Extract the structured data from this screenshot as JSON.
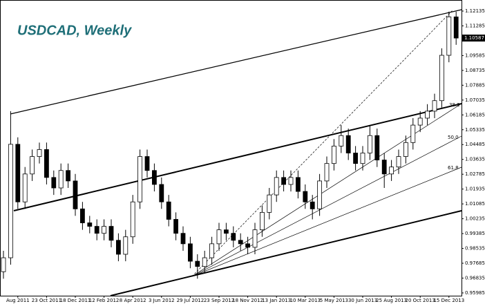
{
  "chart_data": {
    "type": "candlestick",
    "title": "USDCAD, Weekly",
    "categories": [
      null,
      null,
      "Aug 2011",
      null,
      null,
      null,
      "23 Oct 2011",
      null,
      null,
      null,
      "18 Dec 2011",
      null,
      null,
      null,
      "12 Feb 2012",
      null,
      null,
      null,
      "8 Apr 2012",
      null,
      null,
      null,
      "3 Jun 2012",
      null,
      null,
      null,
      "29 Jul 2012",
      null,
      null,
      null,
      "23 Sep 2012",
      null,
      null,
      null,
      "18 Nov 2012",
      null,
      null,
      null,
      "13 Jan 2013",
      null,
      null,
      null,
      "10 Mar 2013",
      null,
      null,
      null,
      "5 May 2013",
      null,
      null,
      null,
      "30 Jun 2013",
      null,
      null,
      null,
      "25 Aug 2013",
      null,
      null,
      null,
      "20 Oct 2013",
      null,
      null,
      null,
      "15 Dec 2013",
      null
    ],
    "open": [
      0.972,
      0.98,
      1.045,
      1.012,
      1.028,
      1.038,
      1.042,
      1.026,
      1.02,
      1.03,
      1.024,
      1.008,
      1.0,
      0.998,
      0.994,
      0.998,
      0.99,
      0.982,
      0.992,
      1.012,
      1.038,
      1.03,
      1.022,
      1.012,
      1.002,
      0.994,
      0.988,
      0.978,
      0.975,
      0.98,
      0.988,
      0.996,
      0.994,
      0.99,
      0.988,
      0.986,
      0.996,
      1.006,
      1.016,
      1.026,
      1.022,
      1.026,
      1.018,
      1.012,
      1.008,
      1.024,
      1.034,
      1.044,
      1.05,
      1.04,
      1.034,
      1.04,
      1.05,
      1.036,
      1.028,
      1.032,
      1.038,
      1.046,
      1.056,
      1.06,
      1.064,
      1.07,
      1.096,
      1.118
    ],
    "high": [
      0.984,
      1.064,
      1.049,
      1.032,
      1.042,
      1.046,
      1.046,
      1.03,
      1.034,
      1.034,
      1.028,
      1.012,
      1.004,
      1.002,
      1.002,
      1.002,
      0.994,
      0.996,
      1.016,
      1.042,
      1.042,
      1.034,
      1.026,
      1.016,
      1.006,
      0.998,
      0.992,
      0.982,
      0.984,
      0.992,
      1.0,
      1.0,
      0.998,
      0.994,
      0.992,
      1.0,
      1.01,
      1.02,
      1.03,
      1.03,
      1.03,
      1.03,
      1.022,
      1.016,
      1.028,
      1.038,
      1.048,
      1.056,
      1.054,
      1.044,
      1.044,
      1.056,
      1.054,
      1.04,
      1.036,
      1.042,
      1.05,
      1.06,
      1.064,
      1.068,
      1.074,
      1.1,
      1.121,
      1.121
    ],
    "low": [
      0.968,
      0.976,
      1.008,
      1.008,
      1.024,
      1.034,
      1.022,
      1.016,
      1.016,
      1.02,
      1.004,
      0.996,
      0.994,
      0.99,
      0.99,
      0.986,
      0.978,
      0.978,
      0.988,
      1.008,
      1.026,
      1.018,
      1.008,
      0.998,
      0.99,
      0.984,
      0.974,
      0.968,
      0.971,
      0.976,
      0.984,
      0.99,
      0.986,
      0.984,
      0.982,
      0.982,
      0.992,
      1.002,
      1.012,
      1.018,
      1.018,
      1.014,
      1.008,
      1.002,
      1.004,
      1.02,
      1.03,
      1.04,
      1.036,
      1.03,
      1.03,
      1.036,
      1.032,
      1.02,
      1.024,
      1.028,
      1.034,
      1.042,
      1.052,
      1.056,
      1.06,
      1.066,
      1.092,
      1.102
    ],
    "close": [
      0.98,
      1.045,
      1.012,
      1.028,
      1.038,
      1.042,
      1.026,
      1.02,
      1.03,
      1.024,
      1.008,
      1.0,
      0.998,
      0.994,
      0.998,
      0.99,
      0.982,
      0.992,
      1.012,
      1.038,
      1.03,
      1.022,
      1.012,
      1.002,
      0.994,
      0.988,
      0.978,
      0.975,
      0.98,
      0.988,
      0.996,
      0.994,
      0.99,
      0.988,
      0.986,
      0.996,
      1.006,
      1.016,
      1.026,
      1.022,
      1.026,
      1.018,
      1.012,
      1.008,
      1.024,
      1.034,
      1.044,
      1.05,
      1.04,
      1.034,
      1.04,
      1.05,
      1.036,
      1.028,
      1.032,
      1.038,
      1.046,
      1.056,
      1.06,
      1.064,
      1.07,
      1.096,
      1.118,
      1.10587
    ],
    "ylim": [
      0.95825,
      1.12768
    ],
    "yticks": [
      1.12135,
      1.11285,
      1.09585,
      1.08735,
      1.07885,
      1.07035,
      1.06185,
      1.05335,
      1.04485,
      1.03635,
      1.02785,
      1.01935,
      1.01085,
      1.00235,
      0.99385,
      0.98535,
      0.97685,
      0.96835,
      0.95985
    ],
    "current_price": 1.10587,
    "fib_labels": [
      "38.2",
      "50.0",
      "61.8"
    ],
    "up_color": "#ffffff",
    "down_color": "#000000"
  }
}
